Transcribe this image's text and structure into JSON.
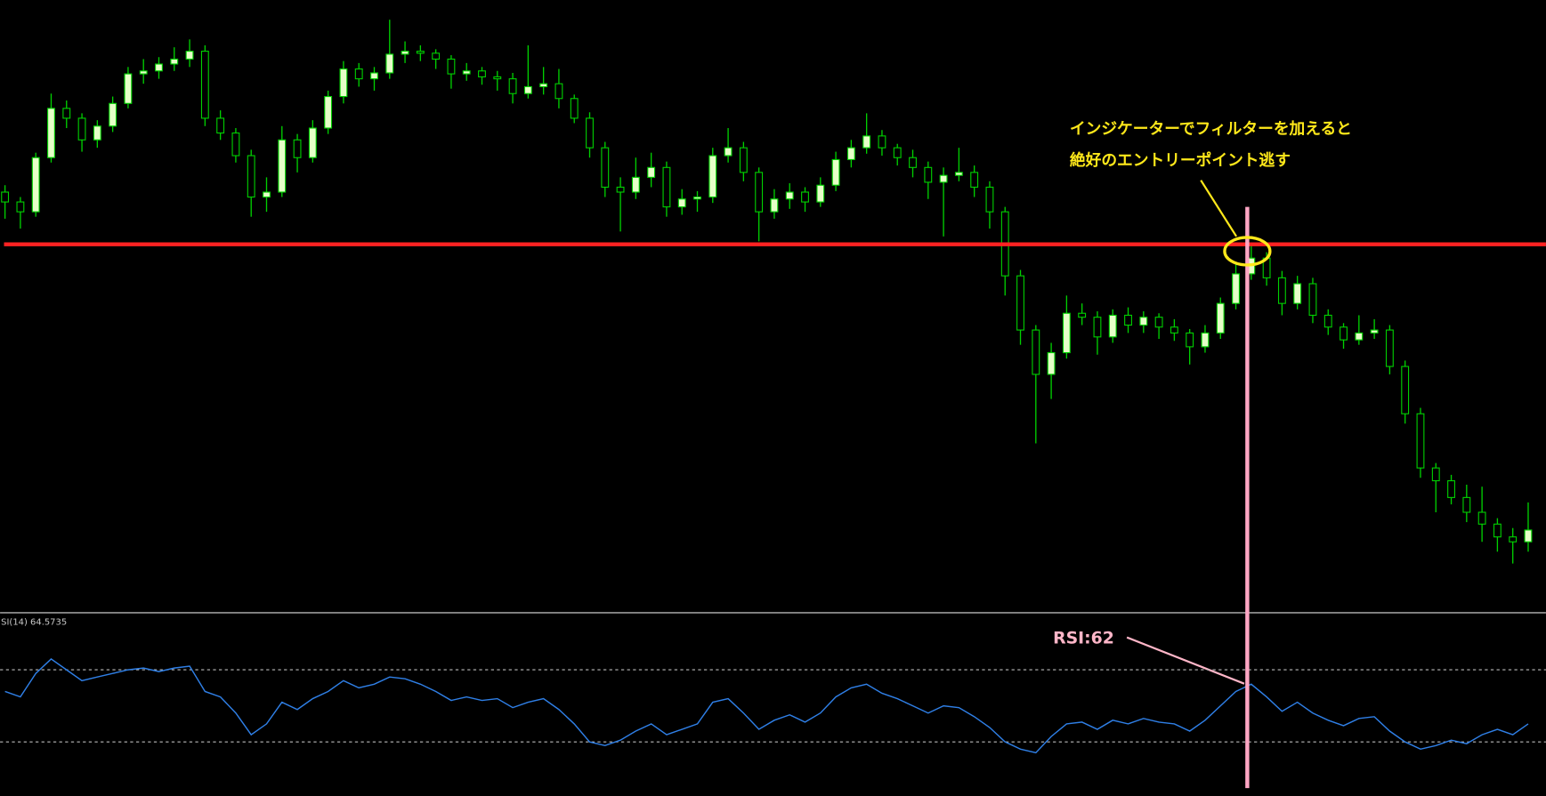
{
  "chart_data": [
    {
      "type": "candlestick",
      "ohlc": [
        [
          425,
          432,
          398,
          415
        ],
        [
          415,
          420,
          388,
          405
        ],
        [
          405,
          465,
          400,
          460
        ],
        [
          460,
          525,
          455,
          510
        ],
        [
          510,
          518,
          490,
          500
        ],
        [
          500,
          505,
          466,
          478
        ],
        [
          478,
          498,
          470,
          492
        ],
        [
          492,
          522,
          486,
          515
        ],
        [
          515,
          552,
          510,
          545
        ],
        [
          545,
          560,
          535,
          548
        ],
        [
          548,
          562,
          540,
          555
        ],
        [
          555,
          572,
          548,
          560
        ],
        [
          560,
          580,
          552,
          568
        ],
        [
          568,
          574,
          492,
          500
        ],
        [
          500,
          508,
          478,
          485
        ],
        [
          485,
          490,
          455,
          462
        ],
        [
          462,
          468,
          400,
          420
        ],
        [
          420,
          440,
          405,
          425
        ],
        [
          425,
          492,
          420,
          478
        ],
        [
          478,
          484,
          445,
          460
        ],
        [
          460,
          498,
          455,
          490
        ],
        [
          490,
          528,
          484,
          522
        ],
        [
          522,
          558,
          515,
          550
        ],
        [
          550,
          556,
          532,
          540
        ],
        [
          540,
          552,
          528,
          546
        ],
        [
          546,
          600,
          540,
          565
        ],
        [
          565,
          578,
          556,
          568
        ],
        [
          568,
          574,
          558,
          566
        ],
        [
          566,
          570,
          550,
          560
        ],
        [
          560,
          564,
          530,
          545
        ],
        [
          545,
          556,
          538,
          548
        ],
        [
          548,
          552,
          534,
          542
        ],
        [
          542,
          548,
          528,
          540
        ],
        [
          540,
          546,
          515,
          525
        ],
        [
          525,
          574,
          520,
          532
        ],
        [
          532,
          552,
          524,
          535
        ],
        [
          535,
          550,
          510,
          520
        ],
        [
          520,
          524,
          495,
          500
        ],
        [
          500,
          506,
          460,
          470
        ],
        [
          470,
          476,
          420,
          430
        ],
        [
          430,
          440,
          385,
          425
        ],
        [
          425,
          460,
          418,
          440
        ],
        [
          440,
          465,
          430,
          450
        ],
        [
          450,
          456,
          400,
          410
        ],
        [
          410,
          428,
          402,
          418
        ],
        [
          418,
          426,
          405,
          420
        ],
        [
          420,
          470,
          414,
          462
        ],
        [
          462,
          490,
          455,
          470
        ],
        [
          470,
          476,
          436,
          445
        ],
        [
          445,
          450,
          375,
          405
        ],
        [
          405,
          428,
          398,
          418
        ],
        [
          418,
          434,
          408,
          425
        ],
        [
          425,
          430,
          405,
          415
        ],
        [
          415,
          440,
          410,
          432
        ],
        [
          432,
          466,
          426,
          458
        ],
        [
          458,
          478,
          450,
          470
        ],
        [
          470,
          505,
          464,
          482
        ],
        [
          482,
          488,
          462,
          470
        ],
        [
          470,
          474,
          452,
          460
        ],
        [
          460,
          468,
          440,
          450
        ],
        [
          450,
          456,
          418,
          435
        ],
        [
          435,
          450,
          380,
          442
        ],
        [
          442,
          470,
          436,
          445
        ],
        [
          445,
          452,
          420,
          430
        ],
        [
          430,
          436,
          388,
          405
        ],
        [
          405,
          410,
          320,
          340
        ],
        [
          340,
          346,
          270,
          285
        ],
        [
          285,
          290,
          170,
          240
        ],
        [
          240,
          272,
          215,
          262
        ],
        [
          262,
          320,
          256,
          302
        ],
        [
          302,
          312,
          290,
          298
        ],
        [
          298,
          304,
          260,
          278
        ],
        [
          278,
          306,
          272,
          300
        ],
        [
          300,
          308,
          282,
          290
        ],
        [
          290,
          304,
          282,
          298
        ],
        [
          298,
          302,
          276,
          288
        ],
        [
          288,
          296,
          274,
          282
        ],
        [
          282,
          286,
          250,
          268
        ],
        [
          268,
          290,
          262,
          282
        ],
        [
          282,
          318,
          276,
          312
        ],
        [
          312,
          352,
          306,
          342
        ],
        [
          342,
          372,
          336,
          358
        ],
        [
          358,
          364,
          330,
          338
        ],
        [
          338,
          345,
          300,
          312
        ],
        [
          312,
          340,
          306,
          332
        ],
        [
          332,
          338,
          292,
          300
        ],
        [
          300,
          306,
          280,
          288
        ],
        [
          288,
          292,
          266,
          275
        ],
        [
          275,
          300,
          270,
          282
        ],
        [
          282,
          296,
          276,
          285
        ],
        [
          285,
          290,
          240,
          248
        ],
        [
          248,
          254,
          190,
          200
        ],
        [
          200,
          206,
          135,
          145
        ],
        [
          145,
          150,
          100,
          132
        ],
        [
          132,
          138,
          108,
          115
        ],
        [
          115,
          128,
          90,
          100
        ],
        [
          100,
          126,
          70,
          88
        ],
        [
          88,
          94,
          60,
          75
        ],
        [
          75,
          84,
          48,
          70
        ],
        [
          70,
          110,
          60,
          82
        ]
      ],
      "up_color": "#e6ffc8",
      "down_color": "#000000",
      "wick_color": "#00d000",
      "ylim": [
        0,
        620
      ],
      "hlines": [
        {
          "value": 372,
          "color": "#ff2222"
        }
      ],
      "highlight_index": 81,
      "highlight_color": "#ffa6c4",
      "annotations": [
        "インジケーターでフィルターを加えると",
        "絶好のエントリーポイント逃す"
      ],
      "annotation_color": "#ffe81a"
    },
    {
      "type": "line",
      "title": "SI(14) 64.5735",
      "values": [
        58,
        55,
        68,
        76,
        70,
        64,
        66,
        68,
        70,
        71,
        69,
        71,
        72,
        58,
        55,
        46,
        34,
        40,
        52,
        48,
        54,
        58,
        64,
        60,
        62,
        66,
        65,
        62,
        58,
        53,
        55,
        53,
        54,
        49,
        52,
        54,
        48,
        40,
        30,
        28,
        31,
        36,
        40,
        34,
        37,
        40,
        52,
        54,
        46,
        37,
        42,
        45,
        41,
        46,
        55,
        60,
        62,
        57,
        54,
        50,
        46,
        50,
        49,
        44,
        38,
        30,
        26,
        24,
        33,
        40,
        41,
        37,
        42,
        40,
        43,
        41,
        40,
        36,
        42,
        50,
        58,
        62,
        55,
        47,
        52,
        46,
        42,
        39,
        43,
        44,
        36,
        30,
        26,
        28,
        31,
        29,
        34,
        37,
        34,
        40
      ],
      "color": "#2f7fe6",
      "ylim": [
        0,
        100
      ],
      "levels": [
        70,
        30
      ],
      "annotation": "RSI:62",
      "annotation_color": "#ffb6c8"
    }
  ]
}
